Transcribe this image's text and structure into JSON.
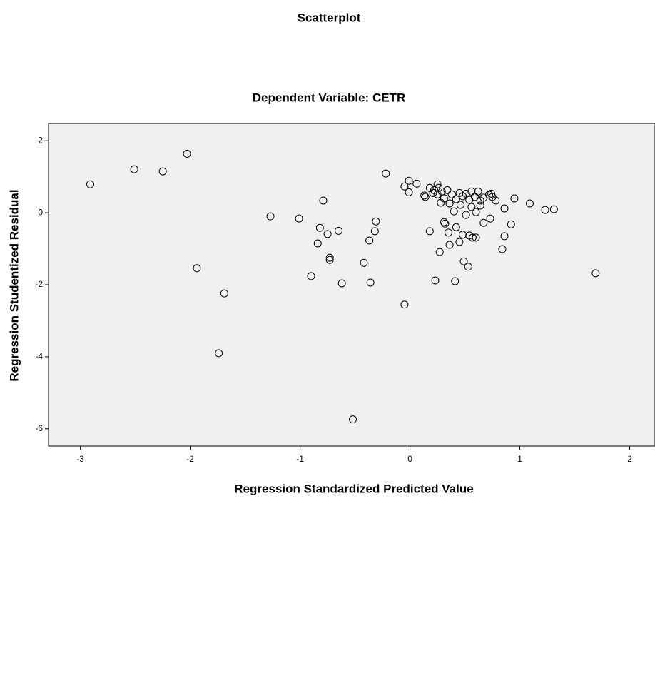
{
  "chart_data": {
    "type": "scatter",
    "title": "Scatterplot",
    "subtitle": "Dependent Variable: CETR",
    "xlabel": "Regression Standardized Predicted Value",
    "ylabel": "Regression Studentized Residual",
    "x": [
      -2.91,
      -2.51,
      -2.25,
      -2.03,
      -1.94,
      -1.69,
      -1.74,
      -1.27,
      -1.01,
      -0.79,
      -0.82,
      -0.84,
      -0.75,
      -0.65,
      -0.73,
      -0.73,
      -0.9,
      -0.62,
      -0.52,
      -0.31,
      -0.32,
      -0.37,
      -0.42,
      -0.36,
      -0.22,
      -0.05,
      -0.05,
      -0.01,
      -0.01,
      0.06,
      0.14,
      0.18,
      0.18,
      0.23,
      0.26,
      0.27,
      0.31,
      0.32,
      0.35,
      0.36,
      0.4,
      0.42,
      0.41,
      0.45,
      0.48,
      0.49,
      0.53,
      0.51,
      0.54,
      0.57,
      0.6,
      0.6,
      0.64,
      0.67,
      0.73,
      0.84,
      0.86,
      0.86,
      0.92,
      0.95,
      1.09,
      1.23,
      1.31,
      1.69,
      0.21,
      0.25,
      0.29,
      0.31,
      0.34,
      0.38,
      0.42,
      0.45,
      0.48,
      0.51,
      0.54,
      0.56,
      0.59,
      0.62,
      0.64,
      0.67,
      0.72,
      0.75,
      0.78,
      0.28,
      0.36,
      0.46,
      0.56,
      0.25,
      0.22,
      0.13,
      0.74
    ],
    "values": [
      0.79,
      1.21,
      1.15,
      1.64,
      -1.54,
      -2.24,
      -3.9,
      -0.1,
      -0.16,
      0.34,
      -0.42,
      -0.85,
      -0.59,
      -0.5,
      -1.25,
      -1.31,
      -1.76,
      -1.96,
      -5.74,
      -0.24,
      -0.51,
      -0.77,
      -1.39,
      -1.94,
      1.09,
      -2.55,
      0.73,
      0.89,
      0.57,
      0.81,
      0.44,
      0.69,
      -0.51,
      -1.88,
      0.69,
      -1.09,
      -0.26,
      -0.3,
      -0.55,
      -0.89,
      0.04,
      -0.4,
      -1.9,
      -0.81,
      -0.61,
      -1.35,
      -1.5,
      -0.06,
      -0.63,
      -0.69,
      -0.69,
      0.02,
      0.2,
      -0.28,
      -0.16,
      -1.01,
      -0.65,
      0.12,
      -0.32,
      0.4,
      0.26,
      0.08,
      0.1,
      -1.68,
      0.55,
      0.51,
      0.59,
      0.4,
      0.63,
      0.51,
      0.38,
      0.55,
      0.46,
      0.53,
      0.36,
      0.59,
      0.44,
      0.59,
      0.34,
      0.42,
      0.5,
      0.44,
      0.34,
      0.28,
      0.26,
      0.22,
      0.16,
      0.79,
      0.63,
      0.48,
      0.53
    ],
    "xlim": [
      -3.29,
      2.23
    ],
    "ylim": [
      -6.48,
      2.48
    ],
    "xticks": [
      -3,
      -2,
      -1,
      0,
      1,
      2
    ],
    "yticks": [
      -6,
      -4,
      -2,
      0,
      2
    ],
    "plot_background": "#f0f0f0",
    "marker_color": "#000000"
  }
}
